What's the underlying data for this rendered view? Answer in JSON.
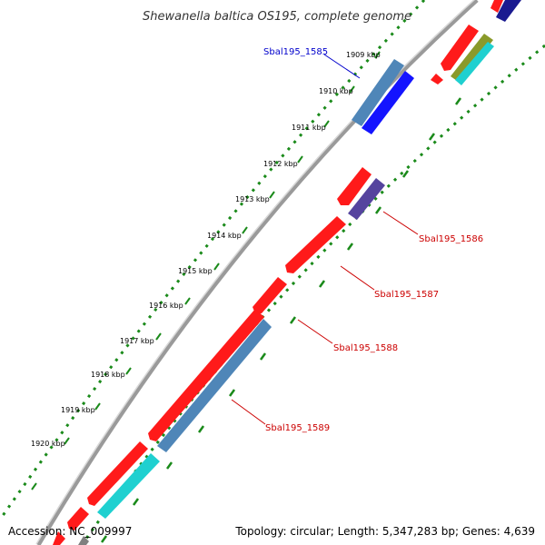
{
  "title": "Shewanella baltica OS195, complete genome",
  "footer": {
    "accession": "Accession: NC_009997",
    "summary": "Topology: circular; Length: 5,347,283 bp; Genes: 4,639"
  },
  "ticks": [
    "1909 kbp",
    "1910 kbp",
    "1911 kbp",
    "1912 kbp",
    "1913 kbp",
    "1914 kbp",
    "1915 kbp",
    "1916 kbp",
    "1917 kbp",
    "1918 kbp",
    "1919 kbp",
    "1920 kbp"
  ],
  "gene_labels": [
    {
      "text": "Sbal195_1585",
      "color": "#0000cc"
    },
    {
      "text": "Sbal195_1586",
      "color": "#cc0000"
    },
    {
      "text": "Sbal195_1587",
      "color": "#cc0000"
    },
    {
      "text": "Sbal195_1588",
      "color": "#cc0000"
    },
    {
      "text": "Sbal195_1589",
      "color": "#cc0000"
    }
  ],
  "colors": {
    "backbone": "#8a8a8a",
    "tick_dots": "#1a8a1a",
    "cds_forward": "#ff1a1a",
    "cds_reverse": "#ff1a1a",
    "steel_blue": "#4f86b8",
    "blue": "#1414ff",
    "slate": "#55449e",
    "cyan": "#1fd0d0",
    "olive": "#8a9a2a",
    "navy": "#1a1a90"
  }
}
